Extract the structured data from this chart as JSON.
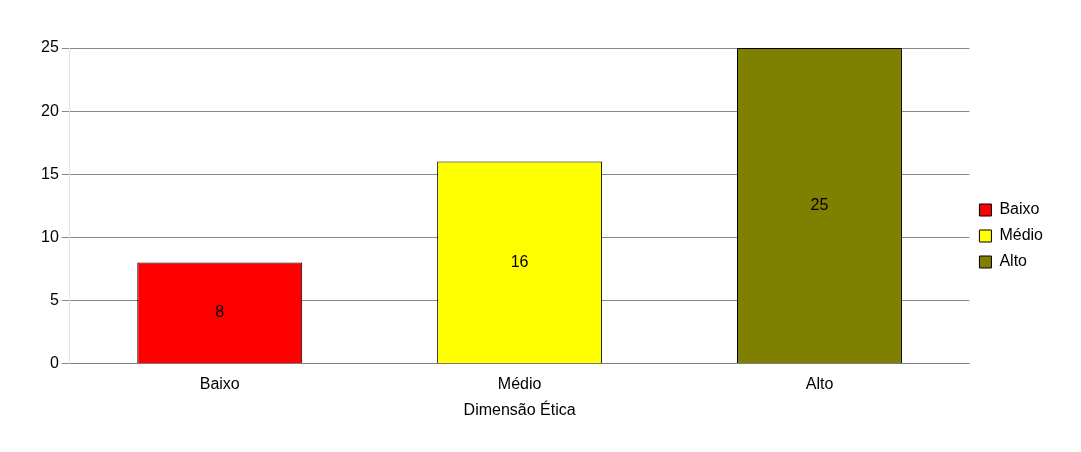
{
  "chart_data": {
    "type": "bar",
    "xlabel": "Dimensão Ética",
    "categories": [
      "Baixo",
      "Médio",
      "Alto"
    ],
    "series": [
      {
        "name": "Baixo",
        "color": "#ff0000",
        "values": [
          8,
          null,
          null
        ]
      },
      {
        "name": "Médio",
        "color": "#ffff00",
        "values": [
          null,
          16,
          null
        ]
      },
      {
        "name": "Alto",
        "color": "#808000",
        "values": [
          null,
          null,
          25
        ]
      }
    ],
    "ylim": [
      0,
      25
    ],
    "yticks": [
      0,
      5,
      10,
      15,
      20,
      25
    ],
    "grid": "y",
    "legend": "right",
    "data_labels": true
  }
}
